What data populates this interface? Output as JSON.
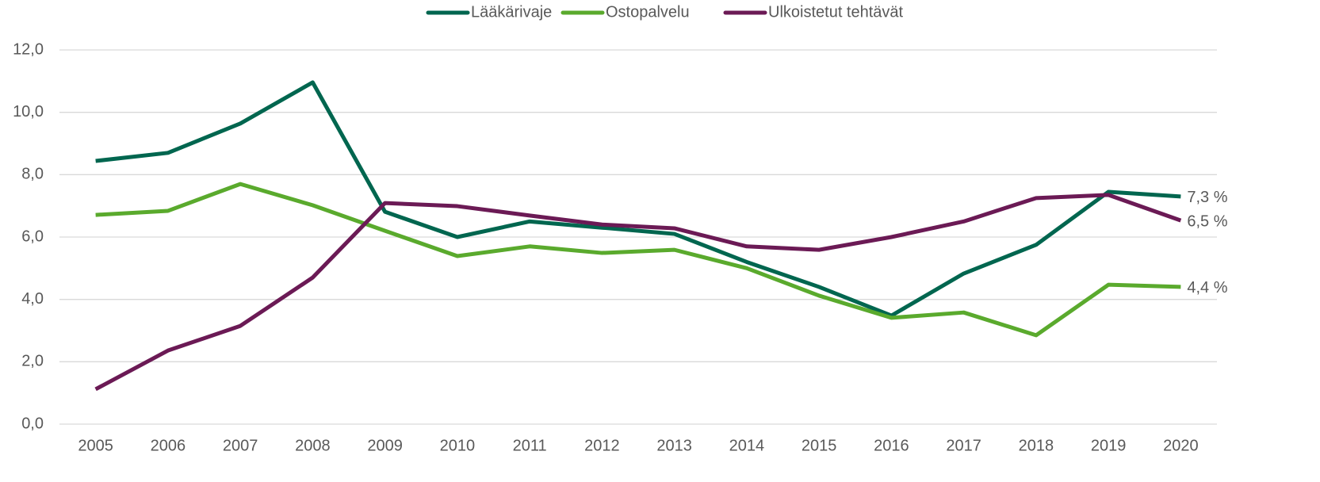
{
  "chart_data": {
    "type": "line",
    "categories": [
      "2005",
      "2006",
      "2007",
      "2008",
      "2009",
      "2010",
      "2011",
      "2012",
      "2013",
      "2014",
      "2015",
      "2016",
      "2017",
      "2018",
      "2019",
      "2020"
    ],
    "series": [
      {
        "name": "Lääkärivaje",
        "color": "#00664f",
        "values": [
          8.44,
          8.7,
          9.64,
          10.96,
          6.81,
          6.0,
          6.5,
          6.3,
          6.1,
          5.2,
          4.4,
          3.48,
          4.83,
          5.75,
          7.45,
          7.3
        ],
        "value_labels": [
          null,
          null,
          null,
          null,
          null,
          null,
          null,
          null,
          null,
          null,
          null,
          null,
          null,
          null,
          null,
          "7,3 %"
        ]
      },
      {
        "name": "Ostopalvelu",
        "color": "#5aaa2d",
        "values": [
          6.71,
          6.84,
          7.7,
          7.02,
          6.2,
          5.39,
          5.7,
          5.49,
          5.59,
          5.0,
          4.12,
          3.41,
          3.58,
          2.85,
          4.47,
          4.4
        ],
        "value_labels": [
          null,
          null,
          null,
          null,
          null,
          null,
          null,
          null,
          null,
          null,
          null,
          null,
          null,
          null,
          null,
          "4,4 %"
        ]
      },
      {
        "name": "Ulkoistetut tehtävät",
        "color": "#6b1a55",
        "values": [
          1.12,
          2.36,
          3.15,
          4.7,
          7.09,
          6.99,
          6.69,
          6.4,
          6.28,
          5.7,
          5.59,
          6.0,
          6.5,
          7.25,
          7.35,
          6.53
        ],
        "value_labels": [
          null,
          null,
          null,
          null,
          null,
          null,
          null,
          null,
          null,
          null,
          null,
          null,
          null,
          null,
          null,
          "6,5 %"
        ]
      }
    ],
    "ylim": [
      0,
      12
    ],
    "yticks": [
      {
        "value": 0,
        "label": "0,0"
      },
      {
        "value": 2,
        "label": "2,0"
      },
      {
        "value": 4,
        "label": "4,0"
      },
      {
        "value": 6,
        "label": "6,0"
      },
      {
        "value": 8,
        "label": "8,0"
      },
      {
        "value": 10,
        "label": "10,0"
      },
      {
        "value": 12,
        "label": "12,0"
      }
    ],
    "grid": true,
    "legend": "top"
  }
}
